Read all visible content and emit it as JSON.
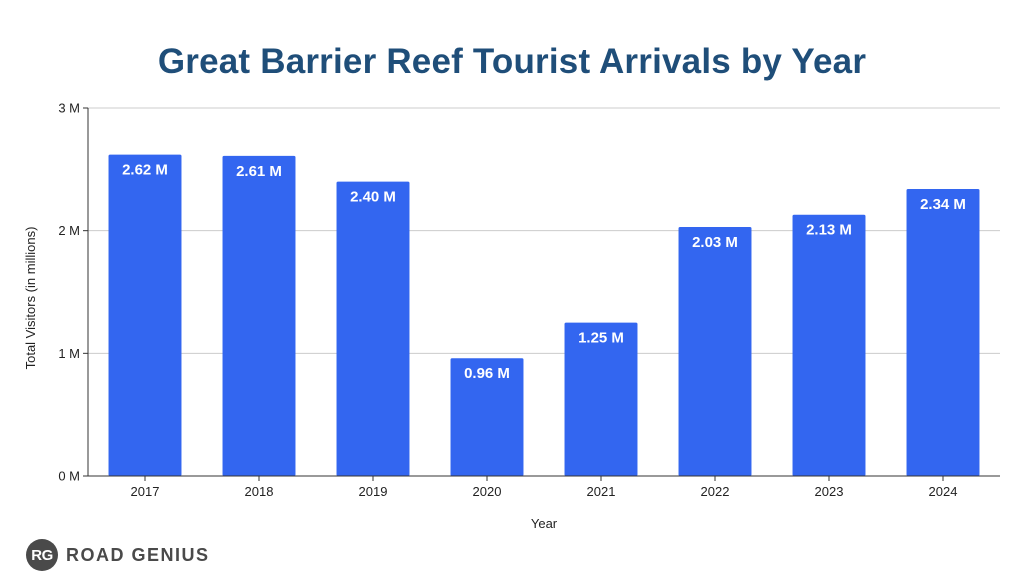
{
  "chart_data": {
    "type": "bar",
    "title": "Great Barrier Reef Tourist Arrivals by Year",
    "xlabel": "Year",
    "ylabel": "Total Visitors (in millions)",
    "categories": [
      "2017",
      "2018",
      "2019",
      "2020",
      "2021",
      "2022",
      "2023",
      "2024"
    ],
    "values": [
      2.62,
      2.61,
      2.4,
      0.96,
      1.25,
      2.03,
      2.13,
      2.34
    ],
    "data_labels": [
      "2.62 M",
      "2.61 M",
      "2.40 M",
      "0.96 M",
      "1.25 M",
      "2.03 M",
      "2.13 M",
      "2.34 M"
    ],
    "yticks": [
      0,
      1,
      2,
      3
    ],
    "ytick_labels": [
      "0 M",
      "1 M",
      "2 M",
      "3 M"
    ],
    "ylim": [
      0,
      3
    ],
    "grid": true,
    "bar_color": "#3366f0",
    "grid_color": "#cccccc",
    "title_color": "#1f4e79"
  },
  "logo": {
    "badge": "RG",
    "text": "ROAD GENIUS"
  }
}
